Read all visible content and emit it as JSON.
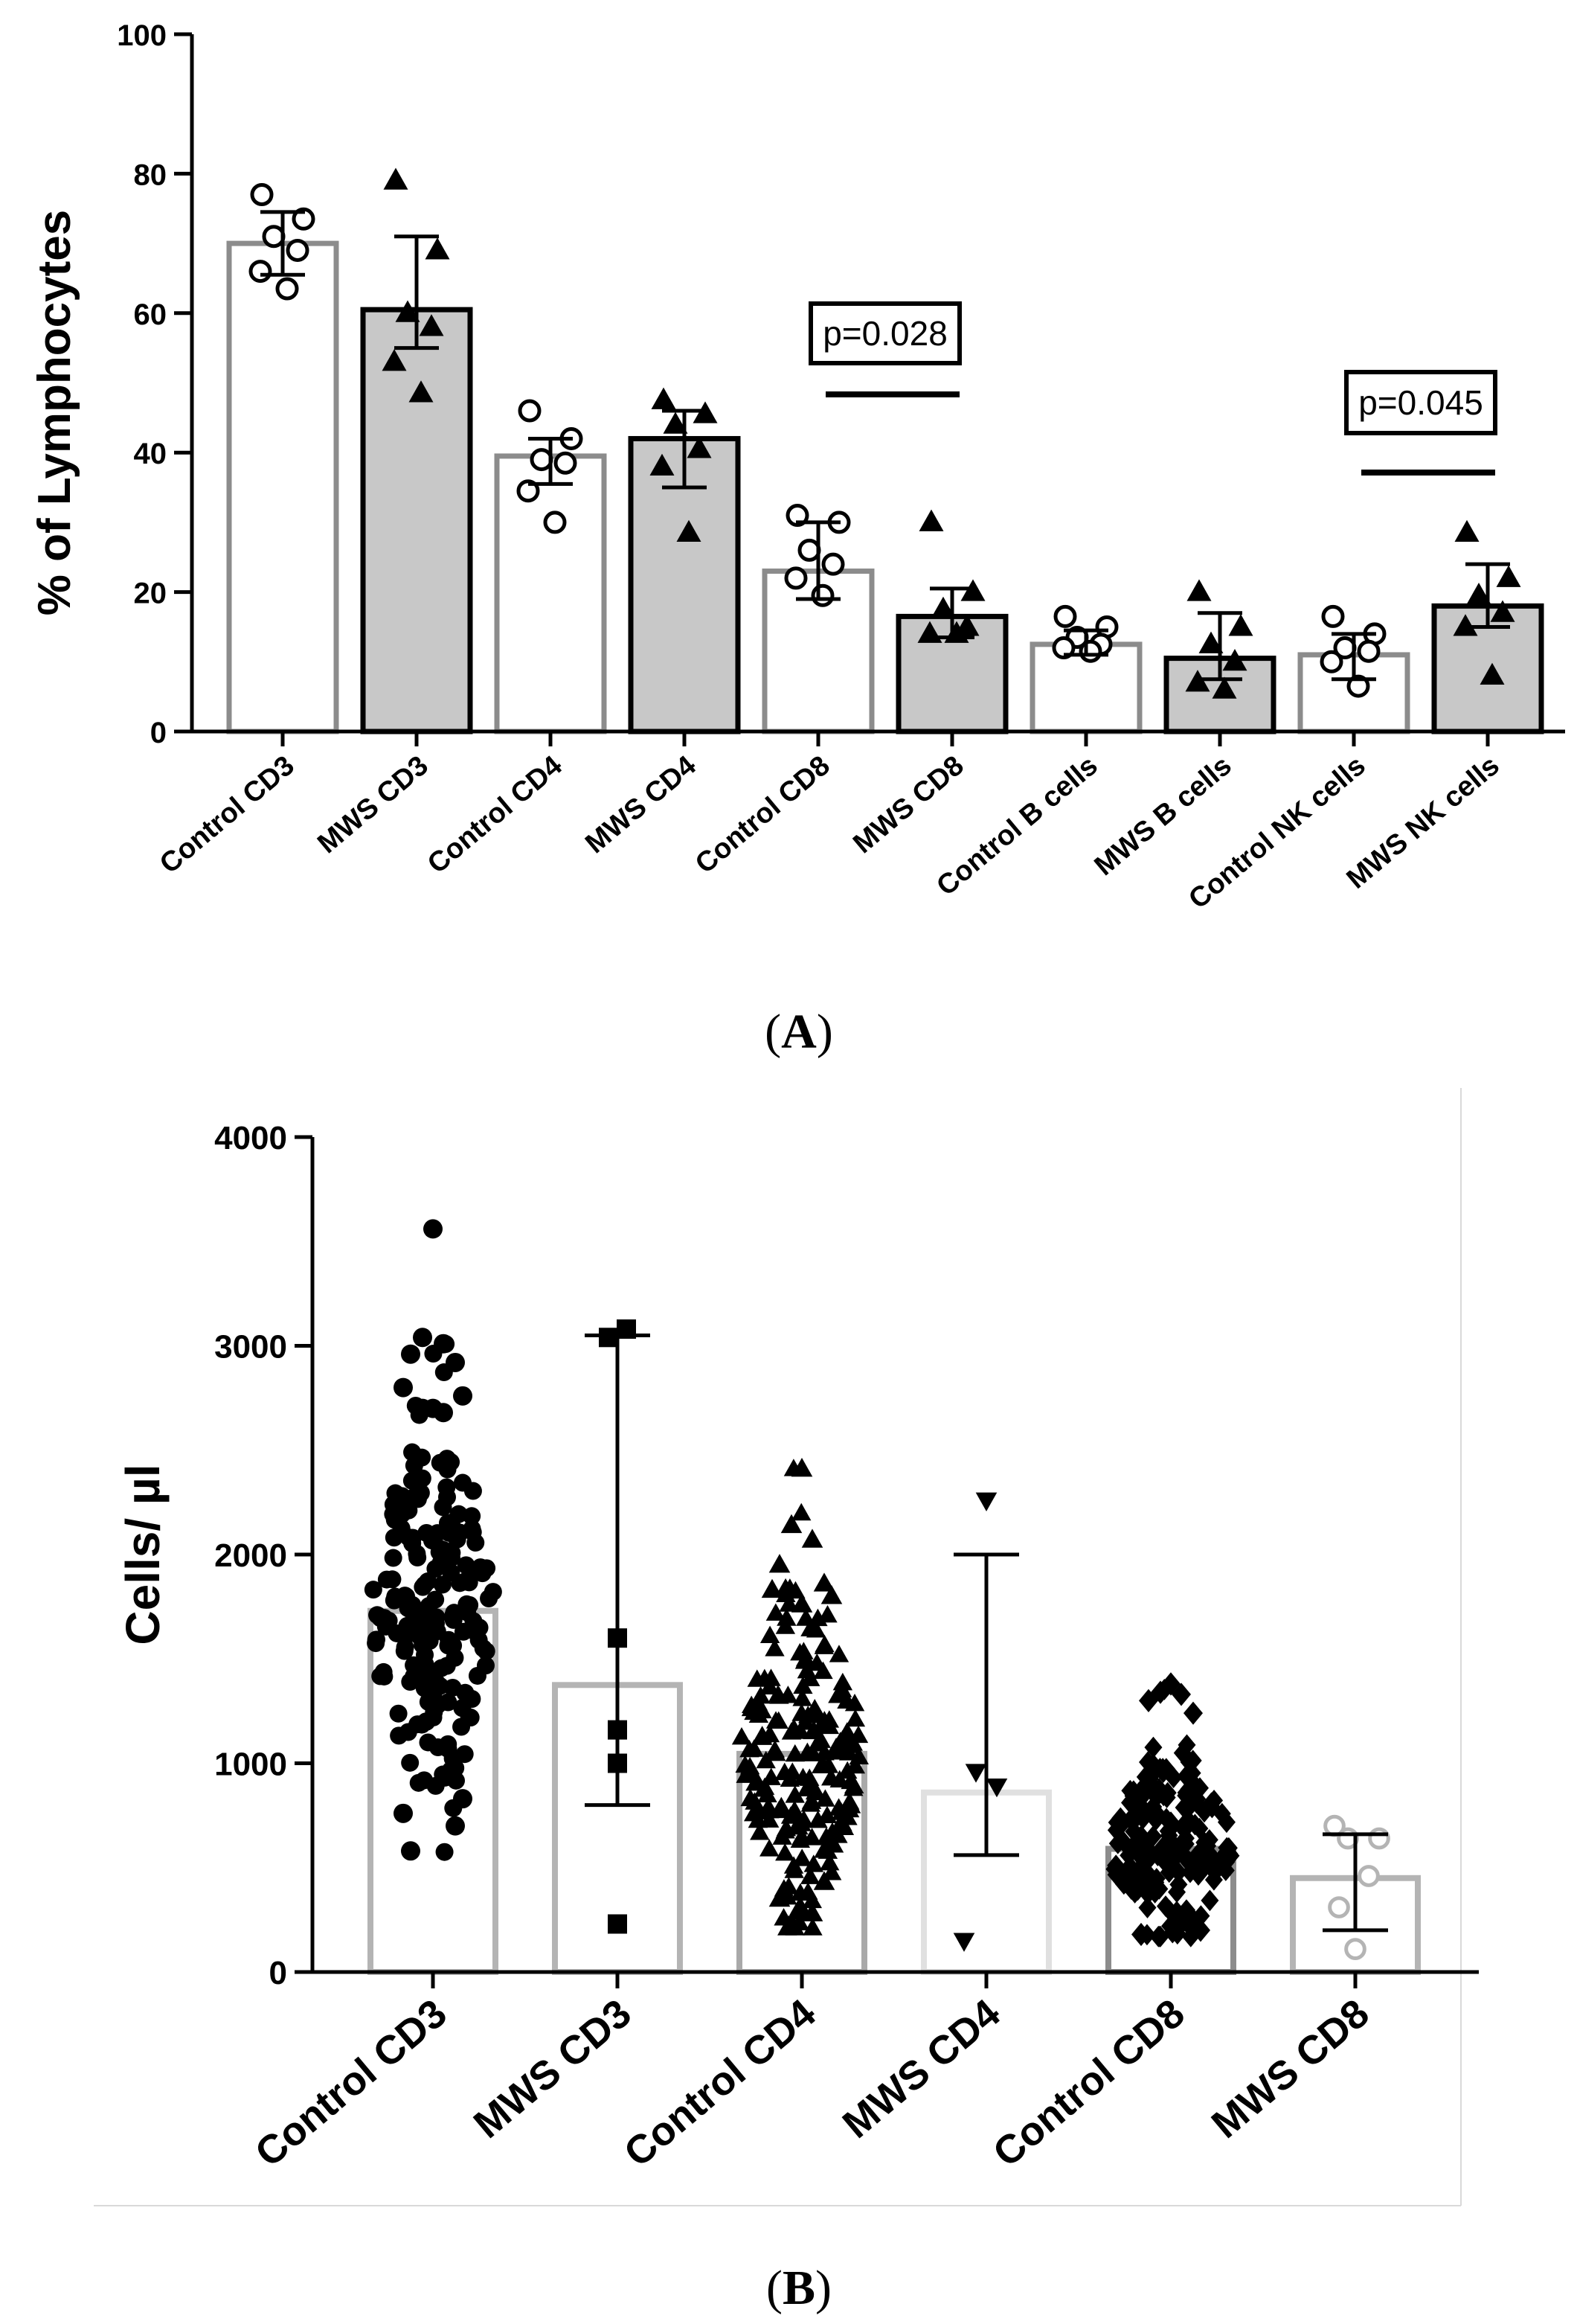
{
  "panels": {
    "a_label": "(A)",
    "b_label": "(B)"
  },
  "chart_data": [
    {
      "type": "bar",
      "panel": "A",
      "title": "",
      "xlabel": "",
      "ylabel": "% of Lymphocytes",
      "ylim": [
        0,
        100
      ],
      "yticks": [
        "0",
        "20",
        "40",
        "60",
        "80",
        "100"
      ],
      "categories": [
        "Control CD3",
        "MWS CD3",
        "Control CD4",
        "MWS CD4",
        "Control CD8",
        "MWS CD8",
        "Control B cells",
        "MWS B cells",
        "Control NK cells",
        "MWS NK cells"
      ],
      "groups": [
        "control",
        "mws",
        "control",
        "mws",
        "control",
        "mws",
        "control",
        "mws",
        "control",
        "mws"
      ],
      "means": [
        70,
        60.5,
        39.5,
        42,
        23,
        16.5,
        12.5,
        10.5,
        11,
        18
      ],
      "err_low": [
        65.5,
        55,
        35.5,
        35,
        19,
        13.5,
        11,
        7.5,
        7.5,
        15
      ],
      "err_high": [
        74.5,
        71,
        42,
        46,
        30,
        20.5,
        14.5,
        17,
        14,
        24
      ],
      "points": [
        [
          77,
          73.5,
          71,
          69,
          66,
          63.5
        ],
        [
          79,
          69,
          60,
          58,
          53,
          48.5
        ],
        [
          46,
          42,
          39,
          38.5,
          34.5,
          30
        ],
        [
          47.5,
          45.5,
          44,
          40.5,
          38,
          28.5
        ],
        [
          31,
          30,
          26,
          24,
          22,
          19.5
        ],
        [
          30,
          20,
          17.5,
          15,
          14,
          14
        ],
        [
          16.5,
          15,
          13.5,
          12.5,
          12,
          11.5
        ],
        [
          20,
          15,
          12.5,
          10,
          7,
          6
        ],
        [
          16.5,
          14,
          12,
          11.5,
          10,
          6.5
        ],
        [
          28.5,
          22,
          19.5,
          17,
          15,
          8
        ]
      ],
      "annotations": [
        {
          "text": "p=0.028",
          "between": [
            4,
            5
          ]
        },
        {
          "text": "p=0.045",
          "between": [
            8,
            9
          ]
        }
      ]
    },
    {
      "type": "bar",
      "panel": "B",
      "title": "",
      "xlabel": "",
      "ylabel": "Cells/ µl",
      "ylim": [
        0,
        4000
      ],
      "yticks": [
        "0",
        "1000",
        "2000",
        "3000",
        "4000"
      ],
      "categories": [
        "Control CD3",
        "MWS CD3",
        "Control CD4",
        "MWS CD4",
        "Control CD8",
        "MWS CD8"
      ],
      "means": [
        1730,
        1375,
        1045,
        860,
        590,
        450
      ],
      "err_low": [
        1730,
        800,
        1045,
        560,
        590,
        200
      ],
      "err_high": [
        1730,
        3050,
        1045,
        2000,
        590,
        660
      ],
      "markers": [
        "circle",
        "square",
        "triangle-up",
        "triangle-down",
        "diamond",
        "open-circle"
      ],
      "bar_colors": [
        "#b4b4b4",
        "#b4b4b4",
        "#a9a9a9",
        "#e0e0e0",
        "#8c8c8c",
        "#b4b4b4"
      ],
      "point_colors": [
        "#000000",
        "#000000",
        "#000000",
        "#000000",
        "#000000",
        "#b4b4b4"
      ],
      "dense": [
        {
          "n": 190,
          "mu": 1740,
          "sd": 480,
          "min": 560,
          "max": 3560
        },
        null,
        {
          "n": 190,
          "mu": 1060,
          "sd": 380,
          "min": 210,
          "max": 2410
        },
        null,
        {
          "n": 190,
          "mu": 600,
          "sd": 230,
          "min": 170,
          "max": 1380
        },
        null
      ],
      "points": [
        [
          3560,
          3040,
          3010,
          2960,
          2920,
          2800,
          2760,
          2700,
          2700,
          2680,
          580,
          700,
          760,
          830
        ],
        [
          3080,
          3040,
          1600,
          1160,
          1000,
          230
        ],
        [
          2410,
          2140,
          2070,
          1950,
          1860,
          1830,
          1800,
          1760,
          230,
          280,
          350,
          430
        ],
        [
          2260,
          960,
          890,
          150
        ],
        [
          1380,
          1340,
          1330,
          1300,
          1240,
          180,
          200,
          220
        ],
        [
          700,
          640,
          640,
          460,
          310,
          110
        ]
      ]
    }
  ]
}
